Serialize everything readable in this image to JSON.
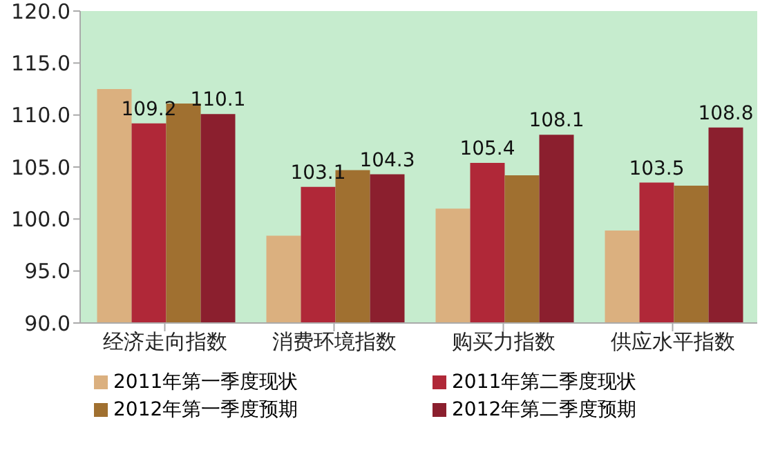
{
  "chart_data": {
    "type": "bar",
    "categories": [
      "经济走向指数",
      "消费环境指数",
      "购买力指数",
      "供应水平指数"
    ],
    "series": [
      {
        "name": "2011年第一季度现状",
        "color": "#dbb07f",
        "values": [
          112.5,
          98.4,
          101.0,
          98.9
        ],
        "value_labels": [
          null,
          null,
          null,
          null
        ]
      },
      {
        "name": "2011年第二季度现状",
        "color": "#b02838",
        "values": [
          109.2,
          103.1,
          105.4,
          103.5
        ],
        "value_labels": [
          "109.2",
          "103.1",
          "105.4",
          "103.5"
        ]
      },
      {
        "name": "2012年第一季度预期",
        "color": "#a07030",
        "values": [
          111.1,
          104.7,
          104.2,
          103.2
        ],
        "value_labels": [
          null,
          null,
          null,
          null
        ]
      },
      {
        "name": "2012年第二季度预期",
        "color": "#8b1f2e",
        "values": [
          110.1,
          104.3,
          108.1,
          108.8
        ],
        "value_labels": [
          "110.1",
          "104.3",
          "108.1",
          "108.8"
        ]
      }
    ],
    "ylim": [
      90,
      120
    ],
    "yticks": [
      {
        "value": 90,
        "label": "90.0"
      },
      {
        "value": 95,
        "label": "95.0"
      },
      {
        "value": 100,
        "label": "100.0"
      },
      {
        "value": 105,
        "label": "105.0"
      },
      {
        "value": 110,
        "label": "110.0"
      },
      {
        "value": 115,
        "label": "115.0"
      },
      {
        "value": 120,
        "label": "120.0"
      }
    ],
    "grid": false,
    "legend": "bottom"
  }
}
